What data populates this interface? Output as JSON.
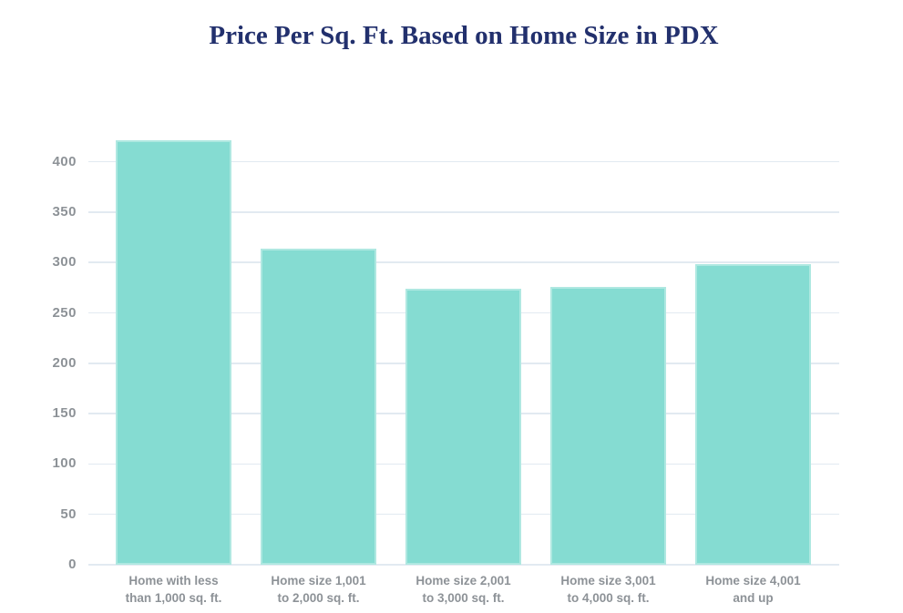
{
  "title": {
    "text": "Price Per Sq. Ft. Based on Home Size in PDX",
    "color": "#22306d"
  },
  "chart_data": {
    "type": "bar",
    "title": "Price Per Sq. Ft. Based on Home Size in PDX",
    "xlabel": "",
    "ylabel": "",
    "categories": [
      "Home with less than 1,000 sq. ft.",
      "Home size 1,001 to 2,000 sq. ft.",
      "Home size 2,001 to 3,000 sq. ft.",
      "Home size 3,001 to 4,000 sq. ft.",
      "Home size 4,001 and up"
    ],
    "category_lines": [
      [
        "Home with less",
        "than 1,000 sq. ft."
      ],
      [
        "Home size 1,001",
        "to 2,000 sq. ft."
      ],
      [
        "Home size 2,001",
        "to 3,000 sq. ft."
      ],
      [
        "Home size 3,001",
        "to 4,000 sq. ft."
      ],
      [
        "Home size 4,001",
        "and up"
      ]
    ],
    "values": [
      421,
      314,
      274,
      276,
      298
    ],
    "ylim": [
      0,
      425
    ],
    "yticks": [
      0,
      50,
      100,
      150,
      200,
      250,
      300,
      350,
      400
    ],
    "ytick_labels": [
      "0",
      "50",
      "100",
      "150",
      "200",
      "250",
      "300",
      "350",
      "400"
    ],
    "grid": true,
    "legend": "none",
    "bar_color": "#85dcd2",
    "gridline_color": "#e2eaf1",
    "axis_label_color": "#8d9297",
    "title_color": "#22306d"
  }
}
